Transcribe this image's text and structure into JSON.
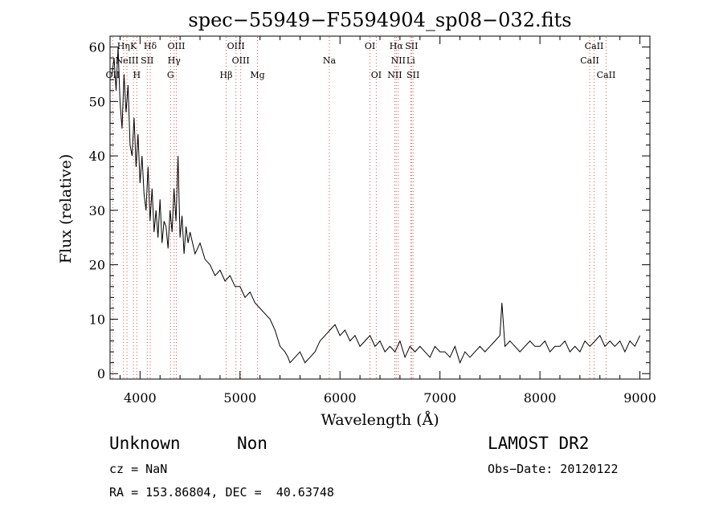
{
  "chart_data": {
    "type": "line",
    "title": "spec−55949−F5594904_sp08−032.fits",
    "xlabel": "Wavelength (Å)",
    "ylabel": "Flux (relative)",
    "xlim": [
      3700,
      9100
    ],
    "ylim": [
      -1,
      62
    ],
    "x_ticks": [
      4000,
      5000,
      6000,
      7000,
      8000,
      9000
    ],
    "x_tick_labels": [
      "4000",
      "5000",
      "6000",
      "7000",
      "8000",
      "9000"
    ],
    "y_ticks": [
      0,
      10,
      20,
      30,
      40,
      50,
      60
    ],
    "y_tick_labels": [
      "0",
      "10",
      "20",
      "30",
      "40",
      "50",
      "60"
    ],
    "grid": false,
    "line_color": "#000000",
    "line_marker_color": "#e05050",
    "series": [
      {
        "x": [
          3720,
          3740,
          3760,
          3780,
          3800,
          3820,
          3840,
          3860,
          3880,
          3900,
          3920,
          3940,
          3960,
          3980,
          4000,
          4020,
          4040,
          4060,
          4080,
          4100,
          4120,
          4140,
          4160,
          4180,
          4200,
          4220,
          4240,
          4260,
          4280,
          4300,
          4320,
          4340,
          4360,
          4380,
          4400,
          4420,
          4440,
          4460,
          4480,
          4500,
          4550,
          4600,
          4650,
          4700,
          4750,
          4800,
          4850,
          4900,
          4950,
          5000,
          5050,
          5100,
          5150,
          5200,
          5250,
          5300,
          5350,
          5400,
          5450,
          5480,
          5500,
          5550,
          5600,
          5650,
          5700,
          5750,
          5800,
          5850,
          5900,
          5950,
          6000,
          6050,
          6100,
          6150,
          6200,
          6250,
          6300,
          6350,
          6400,
          6450,
          6500,
          6550,
          6600,
          6650,
          6700,
          6750,
          6800,
          6850,
          6900,
          6950,
          7000,
          7050,
          7100,
          7150,
          7200,
          7250,
          7300,
          7350,
          7400,
          7450,
          7500,
          7550,
          7600,
          7620,
          7650,
          7700,
          7750,
          7800,
          7850,
          7900,
          7950,
          8000,
          8050,
          8100,
          8150,
          8200,
          8250,
          8300,
          8350,
          8400,
          8450,
          8500,
          8550,
          8600,
          8650,
          8700,
          8750,
          8800,
          8850,
          8900,
          8950,
          9000
        ],
        "y": [
          55,
          58,
          52,
          60,
          50,
          45,
          55,
          48,
          53,
          42,
          40,
          47,
          38,
          44,
          35,
          40,
          33,
          30,
          38,
          28,
          34,
          26,
          30,
          25,
          32,
          24,
          28,
          27,
          23,
          30,
          26,
          34,
          28,
          40,
          25,
          29,
          22,
          27,
          24,
          26,
          22,
          24,
          21,
          20,
          18,
          19,
          17,
          18,
          16,
          16,
          14,
          15,
          13,
          12,
          11,
          10,
          8,
          5,
          4,
          3,
          2,
          3,
          4,
          2,
          3,
          4,
          6,
          7,
          8,
          9,
          7,
          8,
          6,
          7,
          5,
          6,
          7,
          5,
          6,
          4,
          5,
          4,
          6,
          3,
          5,
          4,
          5,
          4,
          3,
          5,
          4,
          4,
          3,
          5,
          2,
          4,
          3,
          4,
          5,
          4,
          5,
          6,
          7,
          13,
          5,
          6,
          5,
          4,
          5,
          6,
          5,
          5,
          6,
          4,
          5,
          5,
          6,
          4,
          5,
          4,
          6,
          5,
          6,
          7,
          5,
          6,
          5,
          6,
          4,
          6,
          5,
          7
        ]
      }
    ],
    "line_labels": [
      {
        "name": "OII",
        "wl": 3727,
        "row": 2
      },
      {
        "name": "Hη",
        "wl": 3835,
        "row": 0
      },
      {
        "name": "NeIII",
        "wl": 3869,
        "row": 1
      },
      {
        "name": "K",
        "wl": 3934,
        "row": 0
      },
      {
        "name": "H",
        "wl": 3968,
        "row": 2
      },
      {
        "name": "Hδ",
        "wl": 4102,
        "row": 0
      },
      {
        "name": "SII",
        "wl": 4072,
        "row": 1
      },
      {
        "name": "OIII",
        "wl": 4363,
        "row": 0
      },
      {
        "name": "Hγ",
        "wl": 4341,
        "row": 1
      },
      {
        "name": "G",
        "wl": 4305,
        "row": 2
      },
      {
        "name": "OIII",
        "wl": 4959,
        "row": 0
      },
      {
        "name": "OIII",
        "wl": 5007,
        "row": 1
      },
      {
        "name": "Hβ",
        "wl": 4861,
        "row": 2
      },
      {
        "name": "Mg",
        "wl": 5175,
        "row": 2
      },
      {
        "name": "Na",
        "wl": 5893,
        "row": 1
      },
      {
        "name": "OI",
        "wl": 6300,
        "row": 0
      },
      {
        "name": "OI",
        "wl": 6363,
        "row": 2
      },
      {
        "name": "Hα",
        "wl": 6563,
        "row": 0
      },
      {
        "name": "SII",
        "wl": 6716,
        "row": 0
      },
      {
        "name": "NII",
        "wl": 6583,
        "row": 1
      },
      {
        "name": "Li",
        "wl": 6708,
        "row": 1
      },
      {
        "name": "NII",
        "wl": 6548,
        "row": 2
      },
      {
        "name": "SII",
        "wl": 6731,
        "row": 2
      },
      {
        "name": "CaII",
        "wl": 8542,
        "row": 0
      },
      {
        "name": "CaII",
        "wl": 8498,
        "row": 1
      },
      {
        "name": "CaII",
        "wl": 8662,
        "row": 2
      }
    ]
  },
  "info": {
    "object_class": "Unknown",
    "subclass": "Non",
    "redshift": "cz = NaN",
    "coords": "RA = 153.86804, DEC =  40.63748",
    "survey": "LAMOST DR2",
    "obs_date": "Obs−Date: 20120122"
  }
}
